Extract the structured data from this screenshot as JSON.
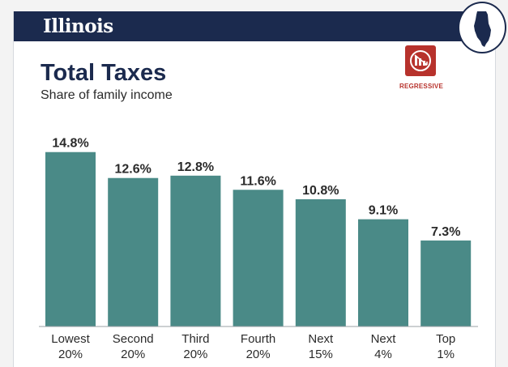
{
  "header": {
    "state_name": "Illinois"
  },
  "badge": {
    "state_icon": "illinois-state-silhouette-icon"
  },
  "regressive": {
    "label": "REGRESSIVE",
    "icon": "declining-bars-icon",
    "color": "#b7322c"
  },
  "colors": {
    "navy": "#1b2a4e",
    "bar": "#4a8a87",
    "text": "#2b2b2b"
  },
  "chart_data": {
    "type": "bar",
    "title": "Total Taxes",
    "subtitle": "Share of family income",
    "categories": [
      [
        "Lowest",
        "20%"
      ],
      [
        "Second",
        "20%"
      ],
      [
        "Third",
        "20%"
      ],
      [
        "Fourth",
        "20%"
      ],
      [
        "Next",
        "15%"
      ],
      [
        "Next",
        "4%"
      ],
      [
        "Top",
        "1%"
      ]
    ],
    "values": [
      14.8,
      12.6,
      12.8,
      11.6,
      10.8,
      9.1,
      7.3
    ],
    "value_labels": [
      "14.8%",
      "12.6%",
      "12.8%",
      "11.6%",
      "10.8%",
      "9.1%",
      "7.3%"
    ],
    "ylim": [
      0,
      16.5
    ],
    "grid": false,
    "legend": "none"
  }
}
